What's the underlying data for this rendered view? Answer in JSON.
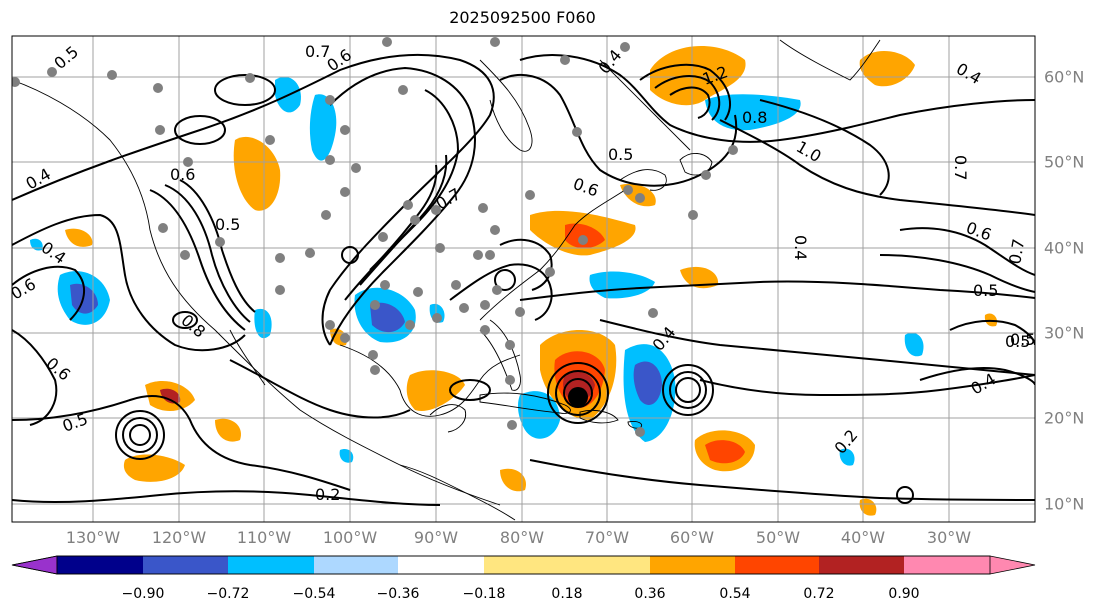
{
  "title": "2025092500 F060",
  "lon_labels": [
    "130°W",
    "120°W",
    "110°W",
    "100°W",
    "90°W",
    "80°W",
    "70°W",
    "60°W",
    "50°W",
    "40°W",
    "30°W"
  ],
  "lat_labels": [
    "60°N",
    "50°N",
    "40°N",
    "30°N",
    "20°N",
    "10°N"
  ],
  "contour_labels": [
    "0.5",
    "0.7",
    "0.6",
    "0.4",
    "1.2",
    "0.8",
    "1.0",
    "0.4",
    "0.5",
    "0.6",
    "0.7",
    "0.5",
    "0.4",
    "0.6",
    "0.7",
    "0.6",
    "0.5",
    "0.4",
    "0.5",
    "0.2",
    "0.4",
    "0.6",
    "0.8",
    "0.5",
    "0.7",
    "0.5",
    "0.6",
    "0.4",
    "0.2",
    "0.4"
  ],
  "colorbar": {
    "ticks": [
      "−0.90",
      "−0.72",
      "−0.54",
      "−0.36",
      "−0.18",
      "0.18",
      "0.36",
      "0.54",
      "0.72",
      "0.90"
    ],
    "colors": [
      "#9932cc",
      "#00008b",
      "#3a56c9",
      "#00bfff",
      "#add8ff",
      "#ffffff",
      "#ffe680",
      "#ffa500",
      "#ff4500",
      "#b22222",
      "#ff88b0"
    ]
  },
  "shading_colors": {
    "light_blue": "#00bfff",
    "mid_blue": "#3a56c9",
    "orange": "#ffa500",
    "red_orange": "#ff4500",
    "dark_red": "#b22222"
  },
  "grid_color": "#a0a0a0",
  "station_dot_color": "#808080",
  "storm_center_color": "#000000"
}
